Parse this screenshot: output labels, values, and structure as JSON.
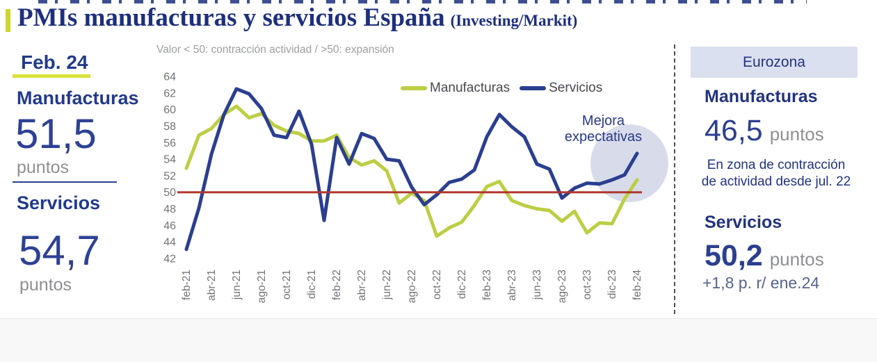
{
  "title": {
    "main": "PMIs manufacturas y servicios España",
    "source": "(Investing/Markit)"
  },
  "left_panel": {
    "period": "Feb. 24",
    "manufacturas_label": "Manufacturas",
    "manufacturas_value": "51,5",
    "manufacturas_unit": "puntos",
    "servicios_label": "Servicios",
    "servicios_value": "54,7",
    "servicios_unit": "puntos"
  },
  "annotation": {
    "line1": "Mejora",
    "line2": "expectativas"
  },
  "chart_data": {
    "type": "line",
    "note": "Valor < 50: contracción actividad / >50: expansión",
    "x_start": "feb-21",
    "x_end": "feb-24",
    "frequency": "monthly",
    "tick_labels": [
      "feb-21",
      "abr-21",
      "jun-21",
      "ago-21",
      "oct-21",
      "dic-21",
      "feb-22",
      "abr-22",
      "jun-22",
      "ago-22",
      "oct-22",
      "dic-22",
      "feb-23",
      "abr-23",
      "jun-23",
      "ago-23",
      "oct-23",
      "dic-23",
      "feb-24"
    ],
    "ylim": [
      42,
      64
    ],
    "ytick_step": 2,
    "reference_line": 50,
    "reference_color": "#b0382f",
    "grid": false,
    "legend_position": "top",
    "series": [
      {
        "name": "Manufacturas",
        "color": "#bdce44",
        "values": [
          52.9,
          56.9,
          57.7,
          59.4,
          60.4,
          59.0,
          59.5,
          58.1,
          57.4,
          57.1,
          56.2,
          56.2,
          56.9,
          54.2,
          53.3,
          53.8,
          52.6,
          48.7,
          49.9,
          49.0,
          44.7,
          45.7,
          46.4,
          48.4,
          50.7,
          51.3,
          49.0,
          48.4,
          48.0,
          47.8,
          46.5,
          47.7,
          45.1,
          46.3,
          46.2,
          49.2,
          51.5
        ]
      },
      {
        "name": "Servicios",
        "color": "#2b3f90",
        "values": [
          43.1,
          48.1,
          54.6,
          59.4,
          62.5,
          61.9,
          60.1,
          56.9,
          56.6,
          59.8,
          55.8,
          46.6,
          56.6,
          53.4,
          57.1,
          56.5,
          54.0,
          53.8,
          50.6,
          48.5,
          49.7,
          51.2,
          51.6,
          52.7,
          56.7,
          59.4,
          57.9,
          56.7,
          53.4,
          52.8,
          49.3,
          50.5,
          51.1,
          51.0,
          51.5,
          52.1,
          54.7
        ]
      }
    ]
  },
  "eurozona": {
    "header": "Eurozona",
    "manufacturas_label": "Manufacturas",
    "manufacturas_value": "46,5",
    "manufacturas_unit": "puntos",
    "note_line1": "En zona de contracción",
    "note_line2": "de actividad desde jul. 22",
    "servicios_label": "Servicios",
    "servicios_value": "50,2",
    "servicios_unit": "puntos",
    "servicios_change": "+1,8 p. r/ ene.24"
  },
  "colors": {
    "accent_yellow": "#d9e03a",
    "navy": "#1d2f7e",
    "highlight_circle": "#d8dcea",
    "eurozona_box_bg": "#dbe0f0"
  }
}
